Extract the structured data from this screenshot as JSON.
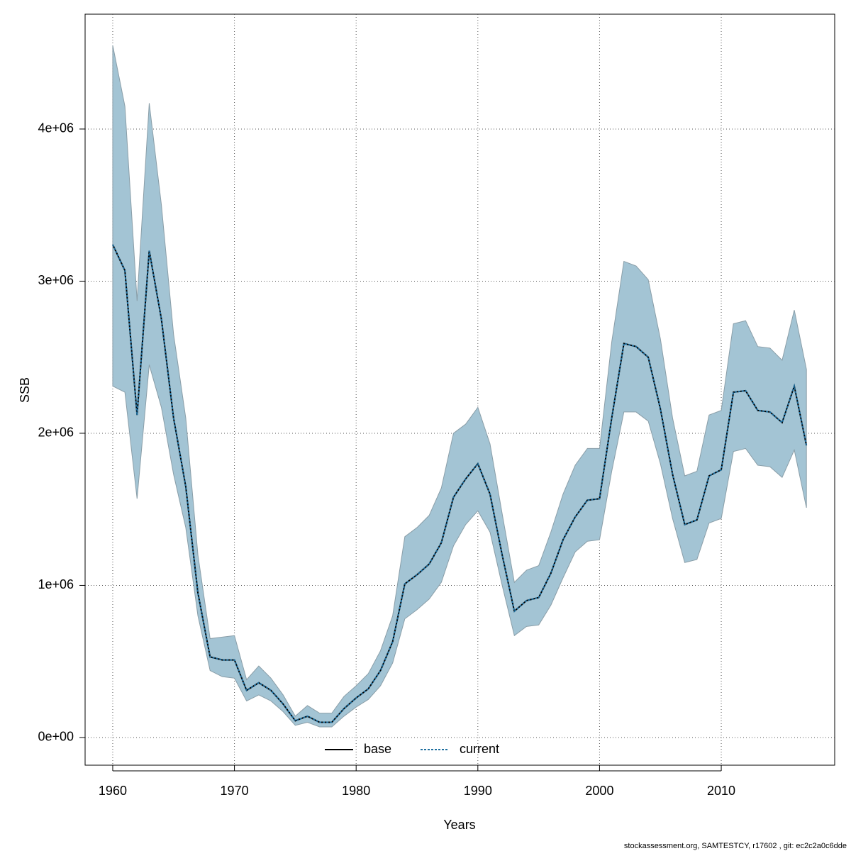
{
  "chart_data": {
    "type": "line",
    "x_label": "Years",
    "y_label": "SSB",
    "footer": "stockassessment.org, SAMTESTCY, r17602 , git: ec2c2a0c6dde",
    "x": [
      1960,
      1961,
      1962,
      1963,
      1964,
      1965,
      1966,
      1967,
      1968,
      1969,
      1970,
      1971,
      1972,
      1973,
      1974,
      1975,
      1976,
      1977,
      1978,
      1979,
      1980,
      1981,
      1982,
      1983,
      1984,
      1985,
      1986,
      1987,
      1988,
      1989,
      1990,
      1991,
      1992,
      1993,
      1994,
      1995,
      1996,
      1997,
      1998,
      1999,
      2000,
      2001,
      2002,
      2003,
      2004,
      2005,
      2006,
      2007,
      2008,
      2009,
      2010,
      2011,
      2012,
      2013,
      2014,
      2015,
      2016,
      2017
    ],
    "band": {
      "color": "#a3c4d4",
      "upper": [
        4550000,
        4150000,
        2870000,
        4170000,
        3500000,
        2650000,
        2100000,
        1200000,
        650000,
        660000,
        670000,
        380000,
        470000,
        390000,
        280000,
        140000,
        210000,
        160000,
        160000,
        270000,
        340000,
        420000,
        570000,
        800000,
        1320000,
        1380000,
        1460000,
        1640000,
        2000000,
        2060000,
        2170000,
        1930000,
        1470000,
        1020000,
        1100000,
        1130000,
        1350000,
        1600000,
        1790000,
        1900000,
        1900000,
        2600000,
        3130000,
        3100000,
        3010000,
        2620000,
        2100000,
        1720000,
        1750000,
        2120000,
        2150000,
        2720000,
        2740000,
        2570000,
        2560000,
        2480000,
        2810000,
        2420000
      ],
      "lower": [
        2310000,
        2270000,
        1570000,
        2450000,
        2170000,
        1730000,
        1380000,
        800000,
        440000,
        400000,
        390000,
        240000,
        280000,
        240000,
        170000,
        80000,
        100000,
        70000,
        70000,
        140000,
        200000,
        250000,
        340000,
        490000,
        780000,
        840000,
        910000,
        1020000,
        1260000,
        1400000,
        1490000,
        1350000,
        1000000,
        670000,
        730000,
        740000,
        870000,
        1050000,
        1220000,
        1290000,
        1300000,
        1750000,
        2140000,
        2140000,
        2080000,
        1800000,
        1440000,
        1150000,
        1170000,
        1410000,
        1440000,
        1880000,
        1900000,
        1790000,
        1780000,
        1710000,
        1890000,
        1510000
      ]
    },
    "series": [
      {
        "name": "base",
        "color": "#000000",
        "dash": false,
        "values": [
          3240000,
          3070000,
          2120000,
          3200000,
          2750000,
          2100000,
          1650000,
          950000,
          530000,
          510000,
          510000,
          310000,
          360000,
          310000,
          220000,
          110000,
          140000,
          100000,
          100000,
          190000,
          260000,
          320000,
          440000,
          630000,
          1010000,
          1070000,
          1140000,
          1280000,
          1580000,
          1700000,
          1800000,
          1600000,
          1200000,
          830000,
          900000,
          920000,
          1080000,
          1300000,
          1450000,
          1560000,
          1570000,
          2100000,
          2590000,
          2570000,
          2500000,
          2160000,
          1730000,
          1400000,
          1430000,
          1720000,
          1760000,
          2270000,
          2280000,
          2150000,
          2140000,
          2070000,
          2310000,
          1920000
        ]
      },
      {
        "name": "current",
        "color": "#1f6f9f",
        "dash": true,
        "values": [
          3240000,
          3070000,
          2120000,
          3200000,
          2750000,
          2100000,
          1650000,
          950000,
          530000,
          510000,
          510000,
          310000,
          360000,
          310000,
          220000,
          110000,
          140000,
          100000,
          100000,
          190000,
          260000,
          320000,
          440000,
          630000,
          1010000,
          1070000,
          1140000,
          1280000,
          1580000,
          1700000,
          1800000,
          1600000,
          1200000,
          830000,
          900000,
          920000,
          1080000,
          1300000,
          1450000,
          1560000,
          1570000,
          2100000,
          2590000,
          2570000,
          2500000,
          2160000,
          1730000,
          1400000,
          1430000,
          1720000,
          1760000,
          2270000,
          2280000,
          2150000,
          2140000,
          2070000,
          2310000,
          1920000
        ]
      }
    ],
    "xlim": [
      1957.73,
      2019.32
    ],
    "xticks": [
      1960,
      1970,
      1980,
      1990,
      2000,
      2010
    ],
    "ylim": [
      -182000,
      4755000
    ],
    "yticks": [
      {
        "value": 0,
        "label": "0e+00"
      },
      {
        "value": 1000000,
        "label": "1e+06"
      },
      {
        "value": 2000000,
        "label": "2e+06"
      },
      {
        "value": 3000000,
        "label": "3e+06"
      },
      {
        "value": 4000000,
        "label": "4e+06"
      }
    ],
    "grid": true,
    "legend": "bottom"
  }
}
